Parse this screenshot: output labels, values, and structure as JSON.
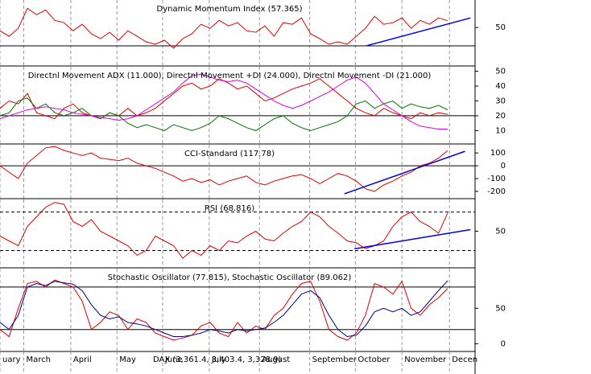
{
  "chart_data": [
    {
      "type": "line",
      "title": "Dynamic Momentum Index (57.365)",
      "xlim": [
        0,
        52
      ],
      "ylim": [
        8,
        80
      ],
      "yticks": [
        50
      ],
      "hlines": [
        30
      ],
      "hline_style": "solid",
      "series": [
        {
          "color": "#e00000",
          "values": [
            46.5,
            40.4,
            49.1,
            70.9,
            63.9,
            69.1,
            57.8,
            55.2,
            46.5,
            53.5,
            43,
            37.8,
            44.8,
            36.1,
            46.5,
            40.4,
            34.3,
            31.7,
            36.1,
            27.4,
            37.8,
            43,
            53.5,
            49.1,
            57.8,
            51.7,
            55.2,
            46.5,
            44.8,
            51.7,
            40.4,
            55.2,
            53.5,
            60.4,
            43,
            37.8,
            31.7,
            34.3,
            31.7,
            40.4,
            49.1,
            62.2,
            53.5,
            55.2,
            60.4,
            49.1,
            57.8,
            53.5,
            60.4,
            57.4
          ]
        }
      ],
      "trendline": {
        "color": "#0000e0",
        "x": [
          40.1,
          51.5
        ],
        "values": [
          30,
          60.4
        ]
      }
    },
    {
      "type": "line",
      "title": "Directnl Movement ADX (11.000), Directnl Movement +DI (24.000), Directnl Movement -DI (21.000)",
      "xlim": [
        0,
        52
      ],
      "ylim": [
        1,
        53
      ],
      "yticks": [
        10,
        20,
        30,
        40,
        50
      ],
      "hlines": [
        20
      ],
      "hline_style": "solid",
      "series": [
        {
          "color": "#e00000",
          "values": [
            25,
            30,
            28,
            35,
            22,
            20,
            18,
            25,
            28,
            22,
            20,
            18,
            22,
            20,
            25,
            20,
            22,
            25,
            30,
            35,
            40,
            42,
            38,
            40,
            45,
            42,
            38,
            40,
            35,
            30,
            32,
            35,
            38,
            40,
            42,
            45,
            40,
            35,
            30,
            25,
            22,
            20,
            25,
            22,
            20,
            18,
            22,
            20,
            22,
            21
          ]
        },
        {
          "color": "#007000",
          "values": [
            20,
            22,
            30,
            32,
            25,
            28,
            22,
            20,
            22,
            25,
            20,
            18,
            22,
            20,
            15,
            12,
            14,
            12,
            10,
            14,
            12,
            10,
            12,
            15,
            20,
            18,
            15,
            12,
            10,
            14,
            18,
            20,
            15,
            12,
            10,
            12,
            14,
            16,
            20,
            28,
            30,
            25,
            28,
            30,
            25,
            28,
            26,
            25,
            27,
            24
          ]
        },
        {
          "color": "#e000e0",
          "values": [
            18,
            20,
            22,
            24,
            25,
            26,
            25,
            24,
            22,
            21,
            20,
            19,
            18,
            17,
            18,
            20,
            24,
            28,
            32,
            36,
            42,
            47,
            48,
            46,
            44,
            43,
            44,
            42,
            38,
            34,
            30,
            27,
            25,
            27,
            30,
            33,
            36,
            40,
            44,
            46,
            42,
            35,
            28,
            24,
            20,
            16,
            13,
            12,
            11,
            11
          ]
        }
      ]
    },
    {
      "type": "line",
      "title": "CCI-Standard (117.78)",
      "xlim": [
        0,
        52
      ],
      "ylim": [
        -257,
        164
      ],
      "yticks": [
        -200,
        -100,
        0,
        100
      ],
      "hlines": [
        0
      ],
      "hline_style": "solid",
      "series": [
        {
          "color": "#e00000",
          "values": [
            0,
            -50,
            -100,
            20,
            80,
            140,
            150,
            120,
            100,
            80,
            100,
            60,
            50,
            40,
            60,
            20,
            0,
            -20,
            -50,
            -80,
            -120,
            -100,
            -130,
            -110,
            -150,
            -120,
            -100,
            -80,
            -130,
            -150,
            -120,
            -100,
            -80,
            -70,
            -100,
            -140,
            -100,
            -60,
            -80,
            -120,
            -180,
            -200,
            -150,
            -120,
            -80,
            -50,
            0,
            20,
            60,
            118
          ]
        }
      ],
      "trendline": {
        "color": "#0000e0",
        "x": [
          37.7,
          50.9
        ],
        "values": [
          -219,
          113
        ]
      }
    },
    {
      "type": "line",
      "title": "RSI (68.816)",
      "xlim": [
        0,
        52
      ],
      "ylim": [
        12,
        83
      ],
      "yticks": [
        50
      ],
      "hlines": [
        70,
        30
      ],
      "hline_style": "dashed",
      "series": [
        {
          "color": "#e00000",
          "values": [
            45,
            40,
            35,
            55,
            65,
            75,
            80,
            78,
            60,
            55,
            62,
            50,
            45,
            40,
            35,
            25,
            30,
            45,
            40,
            35,
            22,
            30,
            25,
            35,
            30,
            40,
            38,
            45,
            50,
            42,
            40,
            48,
            55,
            60,
            70,
            65,
            55,
            48,
            40,
            38,
            32,
            35,
            40,
            55,
            65,
            70,
            60,
            55,
            48,
            69
          ]
        }
      ],
      "trendline": {
        "color": "#0000e0",
        "x": [
          38.8,
          51.5
        ],
        "values": [
          31.7,
          51.7
        ]
      }
    },
    {
      "type": "line",
      "title": "Stochastic Oscillator (77.815), Stochastic Oscillator (89.062)",
      "xlim": [
        0,
        52
      ],
      "ylim": [
        -11,
        106
      ],
      "yticks": [
        0,
        50
      ],
      "hlines": [
        80,
        20
      ],
      "hline_style": "solid",
      "series": [
        {
          "color": "#e00000",
          "values": [
            20,
            10,
            50,
            85,
            88,
            80,
            90,
            85,
            80,
            60,
            20,
            30,
            45,
            40,
            20,
            35,
            30,
            15,
            10,
            5,
            8,
            12,
            25,
            30,
            15,
            10,
            30,
            15,
            25,
            20,
            40,
            50,
            70,
            85,
            88,
            60,
            20,
            10,
            5,
            15,
            40,
            85,
            80,
            70,
            88,
            50,
            40,
            55,
            65,
            78
          ]
        },
        {
          "color": "#000080",
          "values": [
            30,
            20,
            40,
            80,
            85,
            82,
            88,
            86,
            84,
            75,
            55,
            40,
            35,
            38,
            30,
            28,
            25,
            20,
            15,
            10,
            10,
            12,
            15,
            20,
            18,
            15,
            20,
            18,
            20,
            22,
            30,
            40,
            55,
            70,
            75,
            65,
            40,
            20,
            10,
            12,
            25,
            45,
            50,
            45,
            50,
            40,
            45,
            60,
            75,
            89
          ]
        }
      ],
      "xticks": [
        {
          "value": 0,
          "label": "uary"
        },
        {
          "value": 2.6,
          "label": "March"
        },
        {
          "value": 7.75,
          "label": "April"
        },
        {
          "value": 12.8,
          "label": "May"
        },
        {
          "value": 17.8,
          "label": "June"
        },
        {
          "value": 22.9,
          "label": "July"
        },
        {
          "value": 28.4,
          "label": "August"
        },
        {
          "value": 33.9,
          "label": "September"
        },
        {
          "value": 38.9,
          "label": "October"
        },
        {
          "value": 44,
          "label": "November"
        },
        {
          "value": 49.2,
          "label": "Decen"
        }
      ],
      "annotation": "DAX (3,361.4, 3,403.4, 3,328.9)"
    }
  ]
}
